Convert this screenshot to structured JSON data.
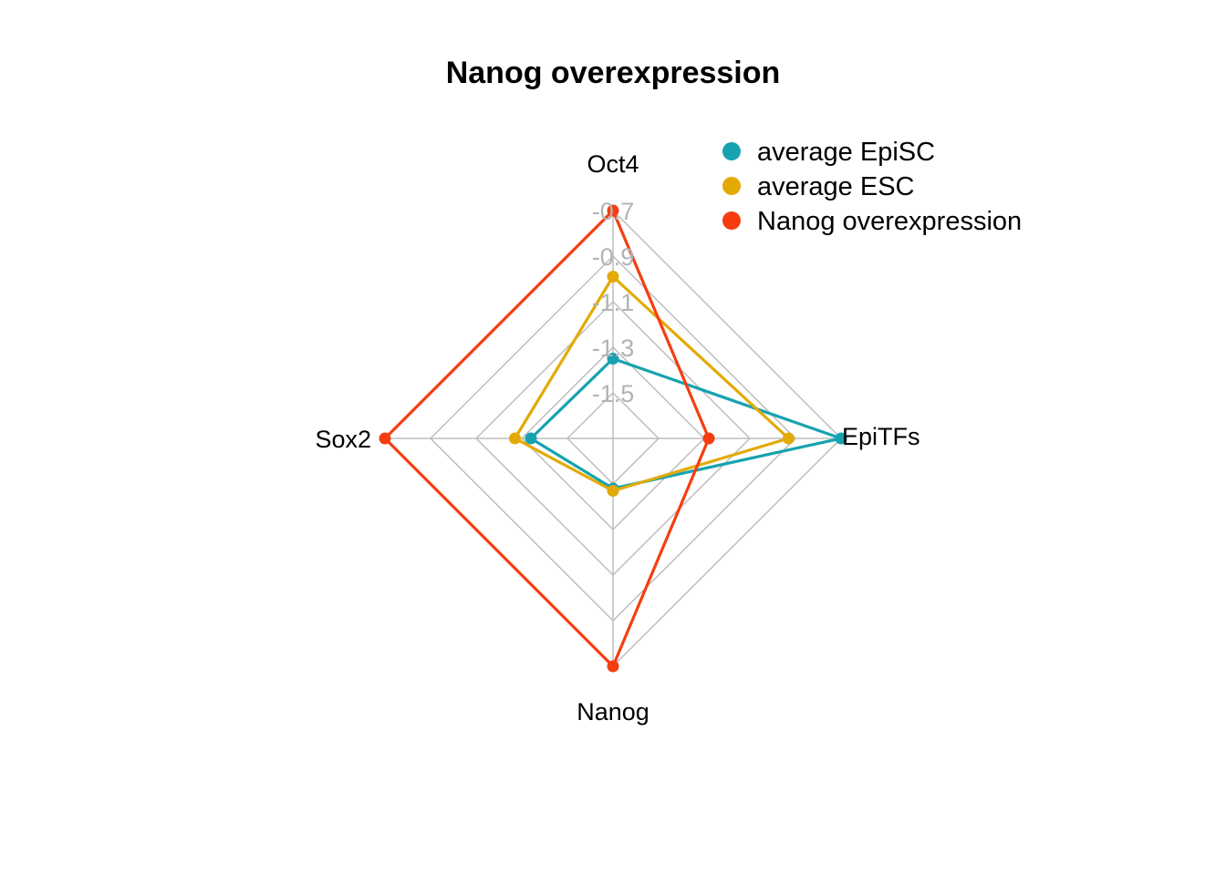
{
  "chart_data": {
    "type": "radar",
    "title": "Nanog overexpression",
    "axes": [
      "Oct4",
      "EpiTFs",
      "Nanog",
      "Sox2"
    ],
    "ticks": [
      "-1.5",
      "-1.3",
      "-1.1",
      "-0.9",
      "-0.7"
    ],
    "range": [
      -1.7,
      -0.7
    ],
    "series": [
      {
        "name": "average EpiSC",
        "color": "#17a2b0",
        "values": [
          -1.35,
          -0.7,
          -1.48,
          -1.34
        ]
      },
      {
        "name": "average ESC",
        "color": "#e3aa06",
        "values": [
          -0.99,
          -0.93,
          -1.47,
          -1.27
        ]
      },
      {
        "name": "Nanog overexpression",
        "color": "#f63d10",
        "values": [
          -0.7,
          -1.28,
          -0.7,
          -0.7
        ]
      }
    ],
    "legend_position": "top-right",
    "grid": true
  }
}
